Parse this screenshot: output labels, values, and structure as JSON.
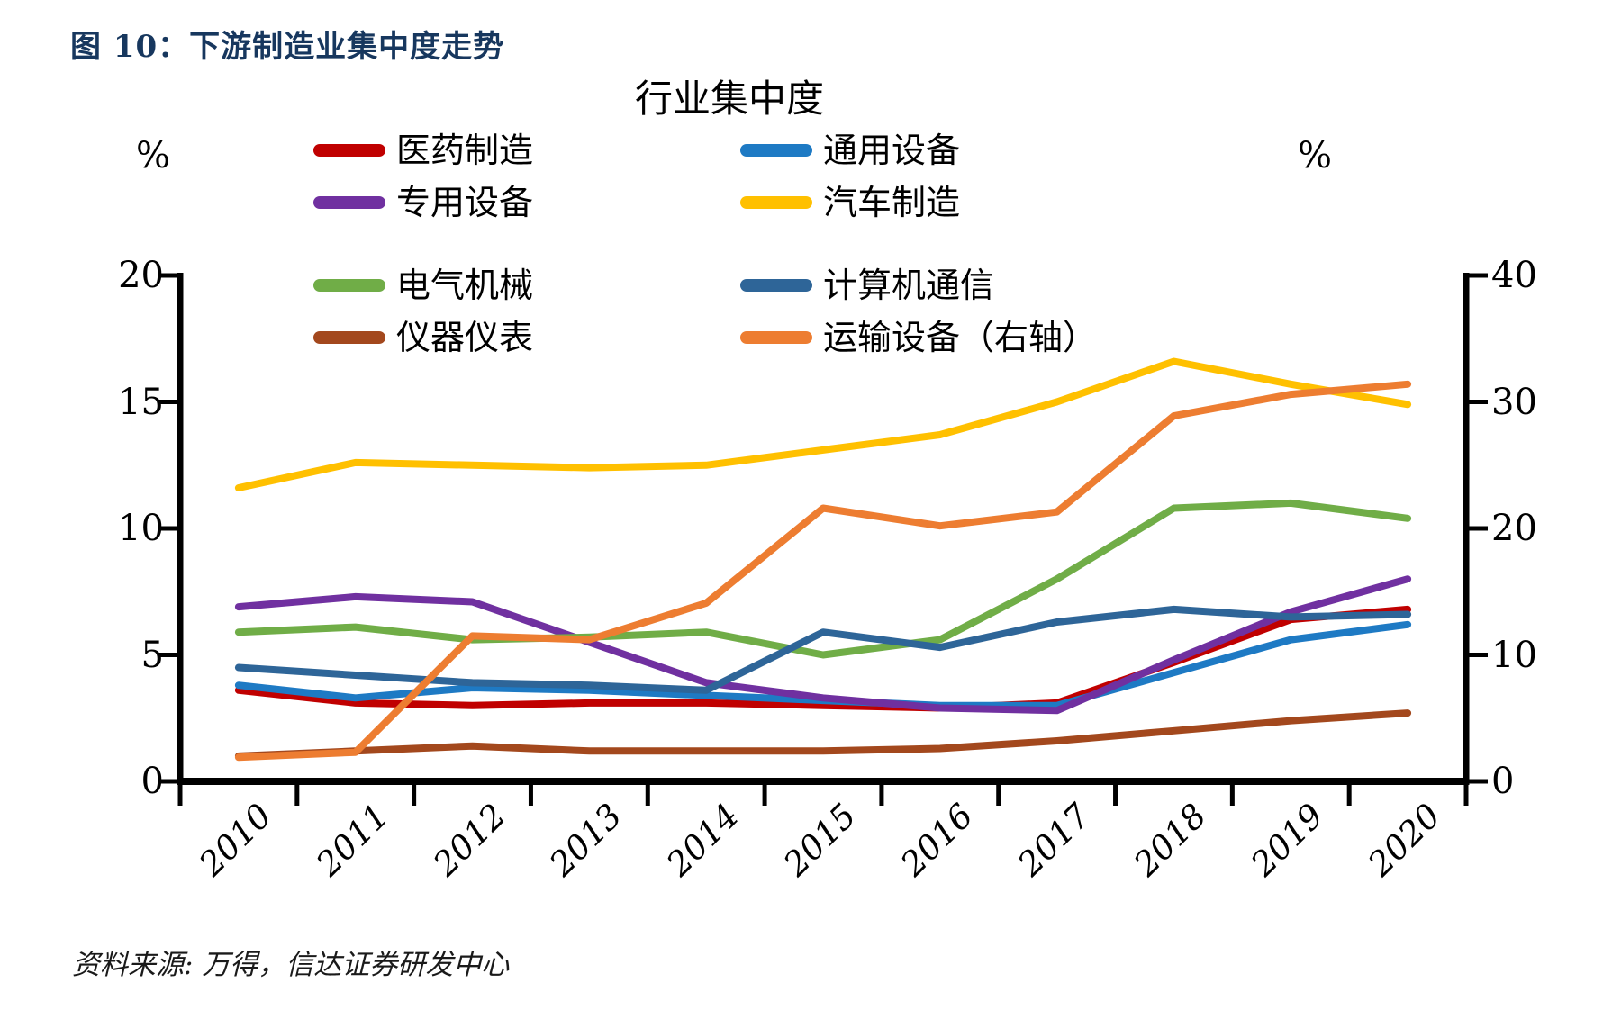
{
  "figure_caption": "图 10：下游制造业集中度走势",
  "source_note": "资料来源: 万得，信达证券研发中心",
  "chart_data": {
    "type": "line",
    "title": "行业集中度",
    "categories": [
      "2010",
      "2011",
      "2012",
      "2013",
      "2014",
      "2015",
      "2016",
      "2017",
      "2018",
      "2019",
      "2020"
    ],
    "left_axis": {
      "unit_label": "%",
      "ticks": [
        0,
        5,
        10,
        15,
        20
      ],
      "range": [
        0,
        20
      ]
    },
    "right_axis": {
      "unit_label": "%",
      "ticks": [
        0,
        10,
        20,
        30,
        40
      ],
      "range": [
        0,
        40
      ]
    },
    "grid": "off",
    "legend_position": "top",
    "series": [
      {
        "id": "pharma",
        "name": "医药制造",
        "color": "#C00000",
        "axis": "left",
        "values": [
          3.6,
          3.1,
          3.0,
          3.1,
          3.1,
          3.0,
          2.9,
          3.1,
          4.7,
          6.4,
          6.8
        ]
      },
      {
        "id": "general-equip",
        "name": "通用设备",
        "color": "#1E7AC4",
        "axis": "left",
        "values": [
          3.8,
          3.3,
          3.7,
          3.6,
          3.4,
          3.2,
          3.0,
          3.0,
          4.3,
          5.6,
          6.2
        ]
      },
      {
        "id": "special-equip",
        "name": "专用设备",
        "color": "#7030A0",
        "axis": "left",
        "values": [
          6.9,
          7.3,
          7.1,
          5.5,
          3.9,
          3.3,
          2.9,
          2.8,
          4.8,
          6.7,
          8.0
        ]
      },
      {
        "id": "auto",
        "name": "汽车制造",
        "color": "#FFC000",
        "axis": "left",
        "values": [
          11.6,
          12.6,
          12.5,
          12.4,
          12.5,
          13.1,
          13.7,
          15.0,
          16.6,
          15.7,
          14.9
        ]
      },
      {
        "id": "electrical",
        "name": "电气机械",
        "color": "#70AD47",
        "axis": "left",
        "values": [
          5.9,
          6.1,
          5.6,
          5.7,
          5.9,
          5.0,
          5.6,
          8.0,
          10.8,
          11.0,
          10.4
        ]
      },
      {
        "id": "computer-comm",
        "name": "计算机通信",
        "color": "#2E6598",
        "axis": "left",
        "values": [
          4.5,
          4.2,
          3.9,
          3.8,
          3.6,
          5.9,
          5.3,
          6.3,
          6.8,
          6.5,
          6.6
        ]
      },
      {
        "id": "instruments",
        "name": "仪器仪表",
        "color": "#A3481D",
        "axis": "left",
        "values": [
          1.0,
          1.2,
          1.4,
          1.2,
          1.2,
          1.2,
          1.3,
          1.6,
          2.0,
          2.4,
          2.7
        ]
      },
      {
        "id": "transport",
        "name": "运输设备（右轴）",
        "color": "#ED7D31",
        "axis": "right",
        "values": [
          1.9,
          2.3,
          11.5,
          11.2,
          14.1,
          21.6,
          20.2,
          21.3,
          28.9,
          30.6,
          31.4
        ]
      }
    ]
  }
}
